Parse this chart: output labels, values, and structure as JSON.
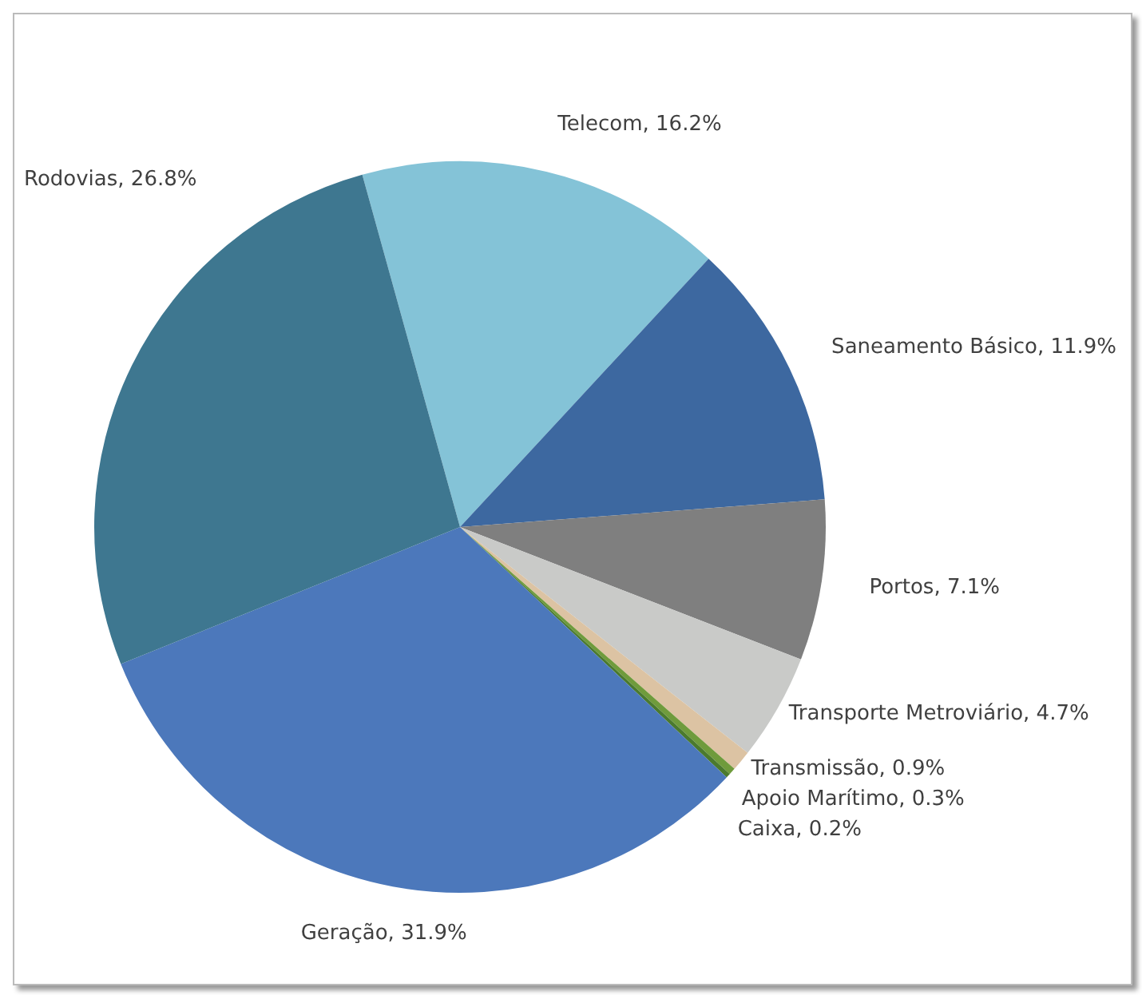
{
  "chart_data": {
    "type": "pie",
    "categories": [
      "Telecom",
      "Saneamento Básico",
      "Portos",
      "Transporte Metroviário",
      "Transmissão",
      "Apoio Marítimo",
      "Caixa",
      "Geração",
      "Rodovias"
    ],
    "values": [
      16.2,
      11.9,
      7.1,
      4.7,
      0.9,
      0.3,
      0.2,
      31.9,
      26.8
    ],
    "value_labels": [
      "16.2%",
      "11.9%",
      "7.1%",
      "4.7%",
      "0.9%",
      "0.3%",
      "0.2%",
      "31.9%",
      "26.8%"
    ],
    "colors": [
      "#84c3d7",
      "#3d68a0",
      "#7f7f7f",
      "#c9cac8",
      "#dcc3a3",
      "#6f9b3c",
      "#4b7a2e",
      "#4c78bb",
      "#3e7790"
    ]
  }
}
